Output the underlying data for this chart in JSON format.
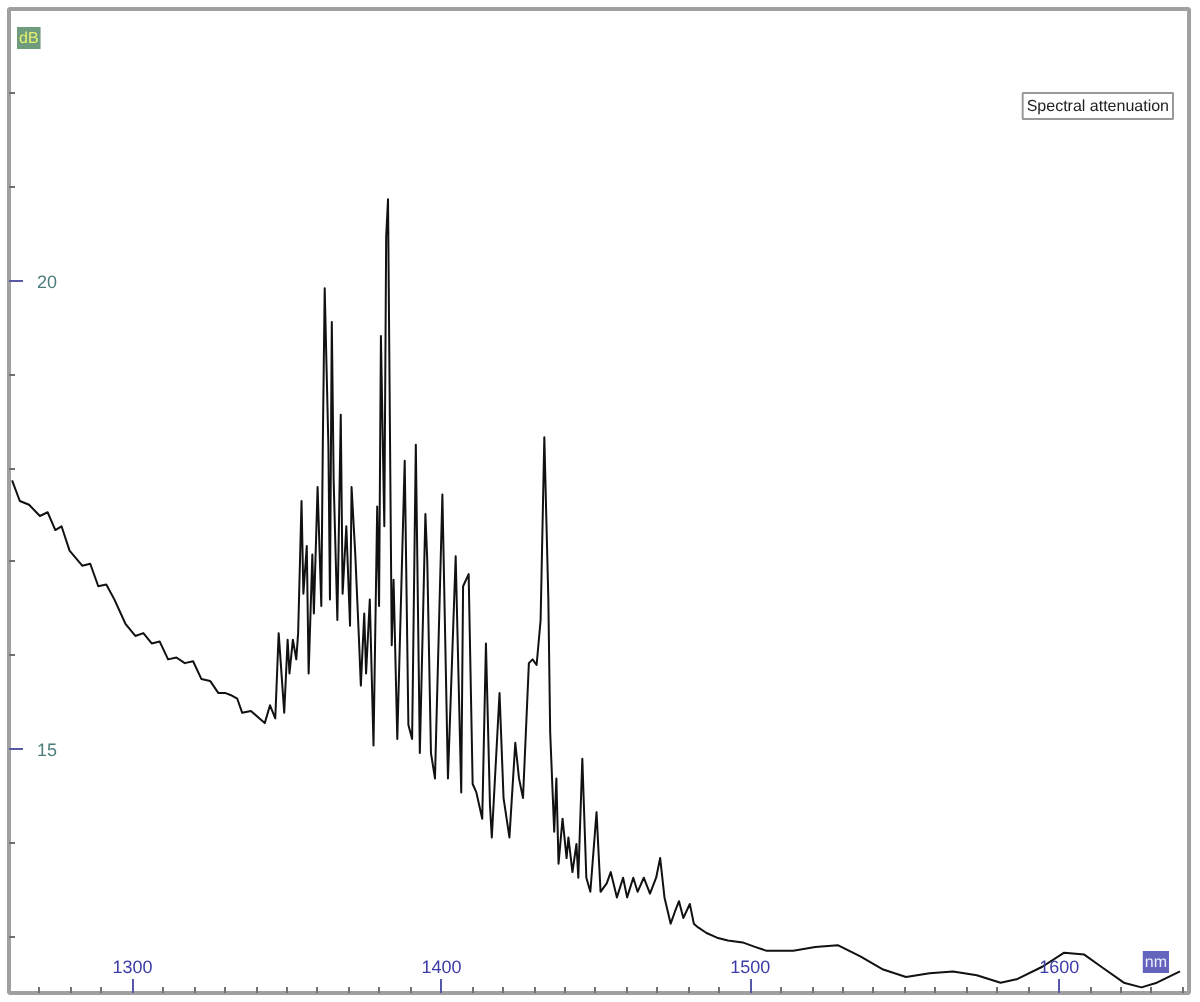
{
  "chart_data": {
    "type": "line",
    "title": "Spectral attenuation",
    "xlabel": "nm",
    "ylabel": "dB",
    "xlim": [
      1260,
      1642
    ],
    "ylim": [
      12.4,
      22.9
    ],
    "xticks": [
      {
        "value": 1270,
        "label": null
      },
      {
        "value": 1280,
        "label": null
      },
      {
        "value": 1290,
        "label": null
      },
      1300,
      {
        "value": 1310,
        "label": null
      },
      {
        "value": 1320,
        "label": null
      },
      {
        "value": 1330,
        "label": null
      },
      {
        "value": 1340,
        "label": null
      },
      {
        "value": 1350,
        "label": null
      },
      {
        "value": 1360,
        "label": null
      },
      {
        "value": 1370,
        "label": null
      },
      {
        "value": 1380,
        "label": null
      },
      {
        "value": 1390,
        "label": null
      },
      1400,
      {
        "value": 1410,
        "label": null
      },
      {
        "value": 1420,
        "label": null
      },
      {
        "value": 1430,
        "label": null
      },
      {
        "value": 1440,
        "label": null
      },
      {
        "value": 1450,
        "label": null
      },
      {
        "value": 1460,
        "label": null
      },
      {
        "value": 1470,
        "label": null
      },
      {
        "value": 1480,
        "label": null
      },
      {
        "value": 1490,
        "label": null
      },
      1500,
      {
        "value": 1510,
        "label": null
      },
      {
        "value": 1520,
        "label": null
      },
      {
        "value": 1530,
        "label": null
      },
      {
        "value": 1540,
        "label": null
      },
      {
        "value": 1550,
        "label": null
      },
      {
        "value": 1560,
        "label": null
      },
      {
        "value": 1570,
        "label": null
      },
      {
        "value": 1580,
        "label": null
      },
      {
        "value": 1590,
        "label": null
      },
      1600,
      {
        "value": 1610,
        "label": null
      },
      {
        "value": 1620,
        "label": null
      },
      {
        "value": 1630,
        "label": null
      },
      {
        "value": 1640,
        "label": null
      }
    ],
    "yticks": [
      {
        "value": 13,
        "label": null
      },
      {
        "value": 14,
        "label": null
      },
      15,
      {
        "value": 16,
        "label": null
      },
      {
        "value": 17,
        "label": null
      },
      {
        "value": 18,
        "label": null
      },
      {
        "value": 19,
        "label": null
      },
      20,
      {
        "value": 21,
        "label": null
      },
      {
        "value": 22,
        "label": null
      }
    ],
    "x": [
      1261.0,
      1263.5,
      1266.5,
      1270.0,
      1272.5,
      1275.0,
      1277.0,
      1279.6,
      1283.7,
      1286.3,
      1288.9,
      1291.5,
      1294.1,
      1297.7,
      1300.9,
      1303.5,
      1306.2,
      1308.8,
      1311.5,
      1314.2,
      1316.9,
      1319.6,
      1322.3,
      1325.1,
      1327.8,
      1330.1,
      1331.7,
      1333.9,
      1335.5,
      1338.3,
      1341.1,
      1342.8,
      1344.5,
      1346.2,
      1347.3,
      1349.1,
      1350.2,
      1350.8,
      1351.9,
      1353.0,
      1353.6,
      1354.7,
      1355.3,
      1356.4,
      1357.0,
      1358.2,
      1358.7,
      1359.9,
      1361.1,
      1361.6,
      1362.2,
      1363.4,
      1363.9,
      1364.5,
      1365.1,
      1366.3,
      1367.4,
      1368.0,
      1369.2,
      1370.4,
      1370.9,
      1372.1,
      1373.3,
      1373.9,
      1375.0,
      1375.6,
      1376.8,
      1378.0,
      1379.2,
      1379.8,
      1380.4,
      1381.5,
      1382.1,
      1382.7,
      1383.9,
      1384.5,
      1385.7,
      1388.1,
      1389.3,
      1390.5,
      1391.7,
      1393.0,
      1394.8,
      1395.4,
      1396.6,
      1397.9,
      1400.3,
      1402.1,
      1404.6,
      1406.4,
      1407.0,
      1408.8,
      1410.1,
      1411.3,
      1413.2,
      1414.4,
      1415.7,
      1416.3,
      1418.8,
      1420.1,
      1422.0,
      1423.9,
      1425.1,
      1426.4,
      1428.3,
      1429.5,
      1430.8,
      1432.1,
      1433.3,
      1434.6,
      1435.2,
      1436.5,
      1437.2,
      1437.9,
      1439.2,
      1440.5,
      1441.1,
      1442.4,
      1443.7,
      1444.3,
      1445.6,
      1446.9,
      1448.2,
      1450.2,
      1451.5,
      1453.5,
      1454.8,
      1456.8,
      1458.8,
      1460.1,
      1462.1,
      1463.5,
      1465.5,
      1467.5,
      1469.5,
      1470.8,
      1472.2,
      1474.2,
      1475.6,
      1476.9,
      1478.3,
      1480.4,
      1481.7,
      1483.1,
      1485.8,
      1489.2,
      1492.7,
      1497.5,
      1501.7,
      1505.3,
      1513.9,
      1521.0,
      1528.3,
      1535.6,
      1543.0,
      1550.4,
      1558.0,
      1565.6,
      1573.3,
      1581.0,
      1586.5,
      1594.5,
      1601.6,
      1608.1,
      1613.6,
      1620.9,
      1626.6,
      1631.6,
      1639.1
    ],
    "series": [
      {
        "color": "#111111",
        "values": [
          17.87,
          17.65,
          17.61,
          17.49,
          17.53,
          17.34,
          17.38,
          17.12,
          16.96,
          16.98,
          16.74,
          16.76,
          16.6,
          16.34,
          16.21,
          16.24,
          16.13,
          16.15,
          15.96,
          15.98,
          15.92,
          15.94,
          15.75,
          15.73,
          15.6,
          15.6,
          15.58,
          15.54,
          15.39,
          15.41,
          15.33,
          15.28,
          15.47,
          15.33,
          16.24,
          15.39,
          16.17,
          15.81,
          16.17,
          15.96,
          16.24,
          17.65,
          16.66,
          17.17,
          15.81,
          17.08,
          16.45,
          17.8,
          16.53,
          18.29,
          19.92,
          18.23,
          16.6,
          19.56,
          17.87,
          16.38,
          18.57,
          16.66,
          17.38,
          16.32,
          17.8,
          17.08,
          16.17,
          15.68,
          16.45,
          15.81,
          16.6,
          15.04,
          17.59,
          16.53,
          19.41,
          17.38,
          20.47,
          20.87,
          16.11,
          16.81,
          15.11,
          18.08,
          15.26,
          15.11,
          18.25,
          14.96,
          17.51,
          17.02,
          14.96,
          14.69,
          17.72,
          14.69,
          17.06,
          14.54,
          16.74,
          16.87,
          14.63,
          14.54,
          14.26,
          16.13,
          14.41,
          14.06,
          15.6,
          14.48,
          14.06,
          15.07,
          14.69,
          14.48,
          15.92,
          15.96,
          15.9,
          16.38,
          18.33,
          16.6,
          15.18,
          14.12,
          14.69,
          13.78,
          14.26,
          13.84,
          14.06,
          13.69,
          13.99,
          13.63,
          14.9,
          13.63,
          13.48,
          14.33,
          13.48,
          13.57,
          13.69,
          13.42,
          13.63,
          13.42,
          13.63,
          13.48,
          13.63,
          13.46,
          13.63,
          13.84,
          13.42,
          13.14,
          13.27,
          13.38,
          13.2,
          13.35,
          13.14,
          13.1,
          13.04,
          12.99,
          12.96,
          12.94,
          12.89,
          12.85,
          12.85,
          12.89,
          12.91,
          12.79,
          12.65,
          12.57,
          12.61,
          12.63,
          12.59,
          12.51,
          12.55,
          12.68,
          12.83,
          12.81,
          12.68,
          12.51,
          12.46,
          12.51,
          12.63
        ]
      }
    ]
  }
}
